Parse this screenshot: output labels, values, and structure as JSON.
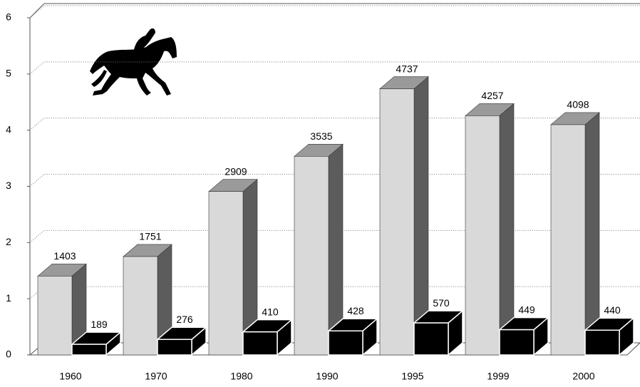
{
  "chart_data": {
    "type": "bar",
    "categories": [
      "1960",
      "1970",
      "1980",
      "1990",
      "1995",
      "1999",
      "2000"
    ],
    "series": [
      {
        "color": "#d9d9d9",
        "values": [
          1.403,
          1.751,
          2.909,
          3.535,
          4.737,
          4.257,
          4.098
        ],
        "value_labels": [
          "1403",
          "1751",
          "2909",
          "3535",
          "4737",
          "4257",
          "4098"
        ]
      },
      {
        "color": "#000000",
        "values": [
          0.189,
          0.276,
          0.41,
          0.428,
          0.57,
          0.449,
          0.44
        ],
        "value_labels": [
          "189",
          "276",
          "410",
          "428",
          "570",
          "449",
          "440"
        ]
      }
    ],
    "ylim": [
      0,
      6
    ],
    "yticks": [
      0,
      1,
      2,
      3,
      4,
      5,
      6
    ],
    "grid": true
  }
}
